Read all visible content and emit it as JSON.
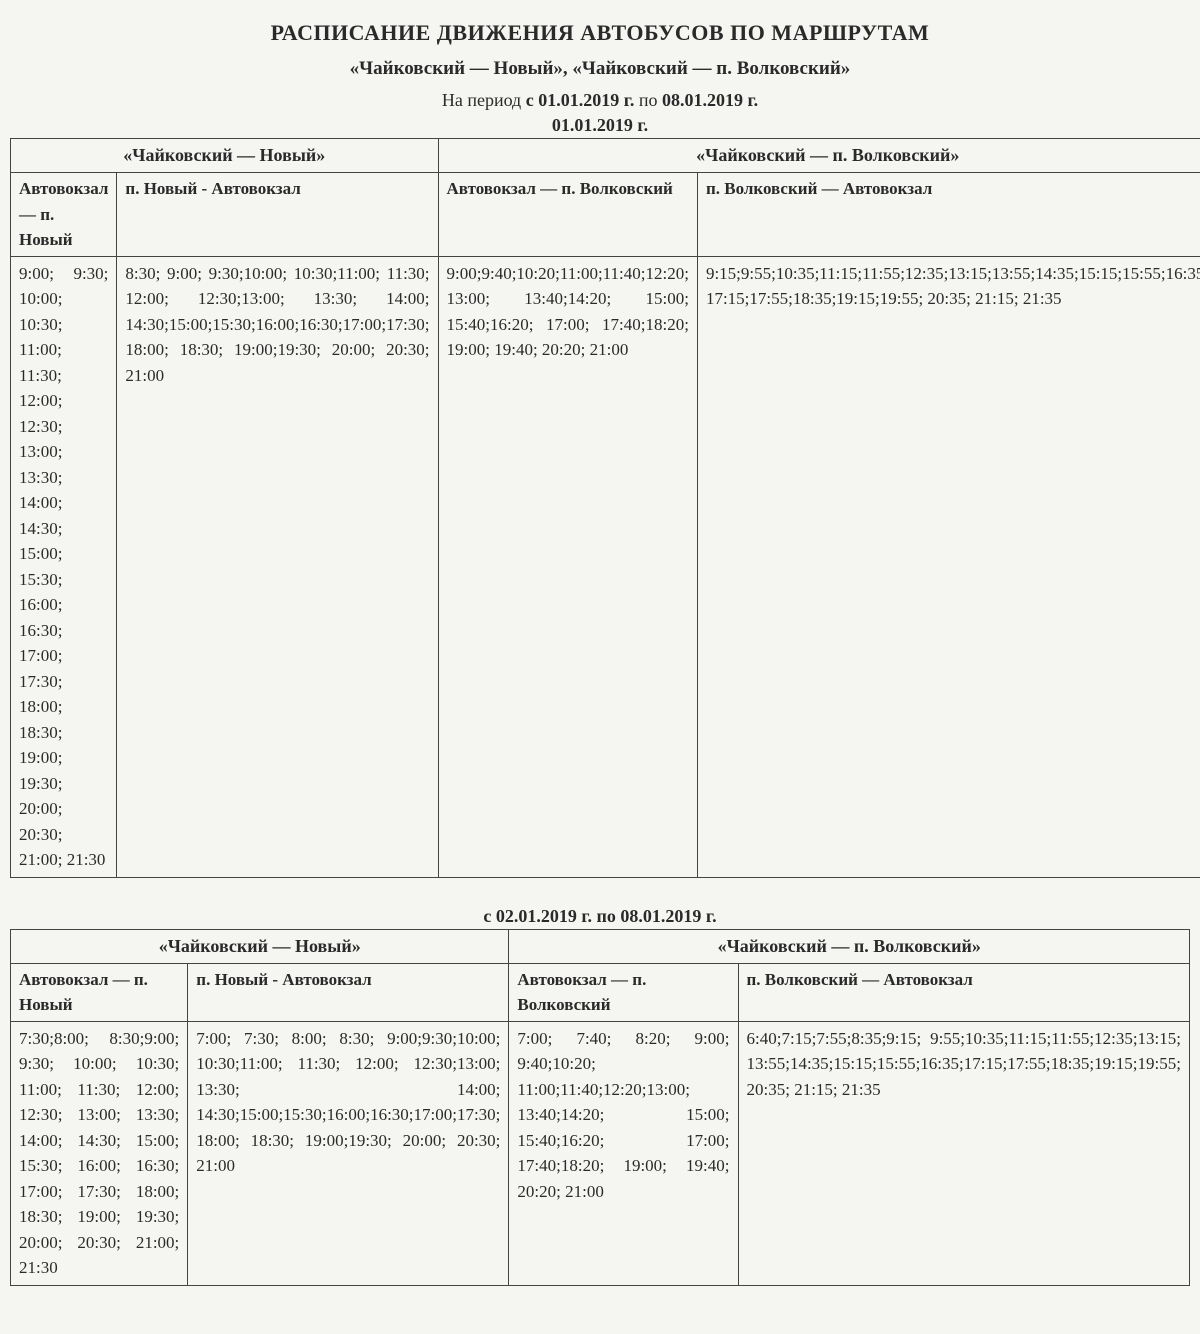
{
  "title": "РАСПИСАНИЕ ДВИЖЕНИЯ АВТОБУСОВ ПО МАРШРУТАМ",
  "subtitle": "«Чайковский — Новый», «Чайковский — п. Волковский»",
  "period_prefix": "На период ",
  "period_from_label": "с 01.01.2019 г.",
  "period_mid": " по ",
  "period_to_label": "08.01.2019 г.",
  "block1": {
    "date": "01.01.2019 г.",
    "route1_header": "«Чайковский — Новый»",
    "route2_header": "«Чайковский — п. Волковский»",
    "col1_header": "Автовокзал — п. Новый",
    "col2_header": "п. Новый - Автовокзал",
    "col3_header": "Автовокзал — п. Волковский",
    "col4_header": "п. Волковский — Автовокзал",
    "col1_times": "9:00; 9:30; 10:00; 10:30; 11:00; 11:30; 12:00; 12:30; 13:00; 13:30; 14:00; 14:30; 15:00; 15:30; 16:00; 16:30; 17:00; 17:30; 18:00; 18:30; 19:00; 19:30; 20:00; 20:30; 21:00; 21:30",
    "col2_times": "8:30; 9:00; 9:30;10:00; 10:30;11:00; 11:30; 12:00; 12:30;13:00; 13:30; 14:00; 14:30;15:00;15:30;16:00;16:30;17:00;17:30; 18:00; 18:30; 19:00;19:30; 20:00; 20:30; 21:00",
    "col3_times": "9:00;9:40;10:20;11:00;11:40;12:20; 13:00; 13:40;14:20; 15:00; 15:40;16:20; 17:00; 17:40;18:20; 19:00; 19:40; 20:20; 21:00",
    "col4_times": "9:15;9:55;10:35;11:15;11:55;12:35;13:15;13:55;14:35;15:15;15:55;16:35; 17:15;17:55;18:35;19:15;19:55; 20:35; 21:15; 21:35"
  },
  "block2": {
    "date": "с 02.01.2019 г. по 08.01.2019 г.",
    "route1_header": "«Чайковский — Новый»",
    "route2_header": "«Чайковский — п. Волковский»",
    "col1_header": "Автовокзал — п. Новый",
    "col2_header": "п. Новый - Автовокзал",
    "col3_header": "Автовокзал — п. Волковский",
    "col4_header": "п. Волковский — Автовокзал",
    "col1_times": "7:30;8:00; 8:30;9:00; 9:30; 10:00; 10:30; 11:00; 11:30; 12:00; 12:30; 13:00; 13:30; 14:00; 14:30; 15:00; 15:30; 16:00; 16:30; 17:00; 17:30; 18:00; 18:30; 19:00; 19:30; 20:00; 20:30; 21:00; 21:30",
    "col2_times": "7:00; 7:30; 8:00; 8:30; 9:00;9:30;10:00; 10:30;11:00; 11:30; 12:00; 12:30;13:00; 13:30; 14:00; 14:30;15:00;15:30;16:00;16:30;17:00;17:30; 18:00; 18:30; 19:00;19:30; 20:00; 20:30; 21:00",
    "col3_times": "7:00; 7:40; 8:20; 9:00; 9:40;10:20; 11:00;11:40;12:20;13:00; 13:40;14:20; 15:00; 15:40;16:20; 17:00; 17:40;18:20; 19:00; 19:40; 20:20; 21:00",
    "col4_times": "6:40;7:15;7:55;8:35;9:15; 9:55;10:35;11:15;11:55;12:35;13:15; 13:55;14:35;15:15;15:55;16:35;17:15;17:55;18:35;19:15;19:55; 20:35; 21:15; 21:35"
  }
}
